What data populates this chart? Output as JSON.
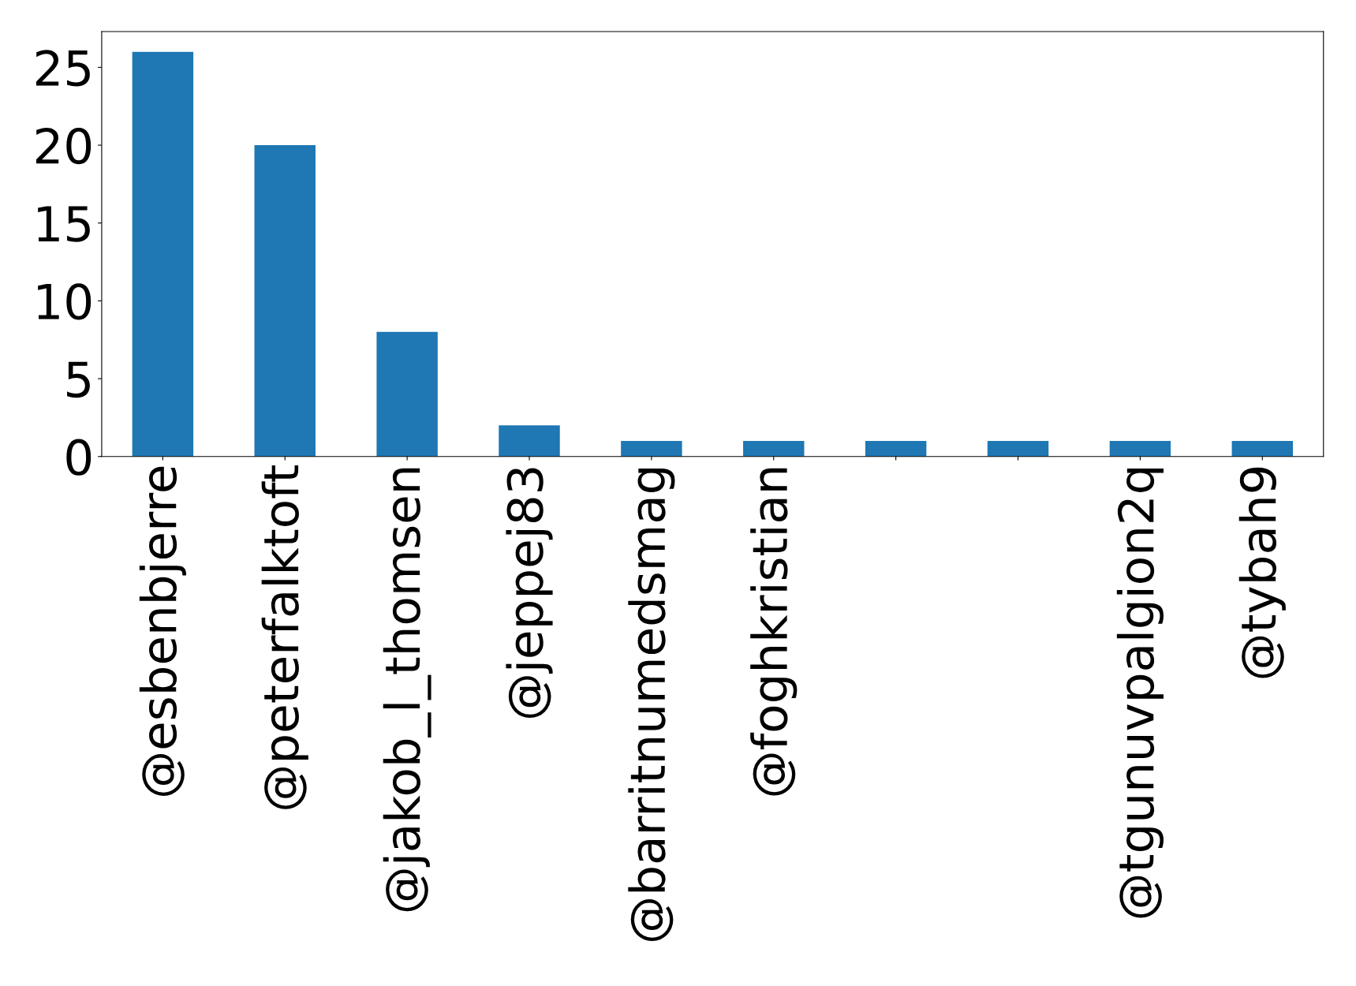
{
  "chart_data": {
    "type": "bar",
    "categories": [
      "@esbenbjerre",
      "@peterfalktoft",
      "@jakob_l_thomsen",
      "@jeppej83",
      "@barritnumedsmag",
      "@foghkristian",
      null,
      null,
      "@tgunuvpalgion2q",
      "@tybah9"
    ],
    "values": [
      26,
      20,
      8,
      2,
      1,
      1,
      1,
      1,
      1,
      1
    ],
    "color": "#1f77b4",
    "ylim": [
      0,
      27.3
    ],
    "yticks": [
      0,
      5,
      10,
      15,
      20,
      25
    ],
    "grid": false
  }
}
